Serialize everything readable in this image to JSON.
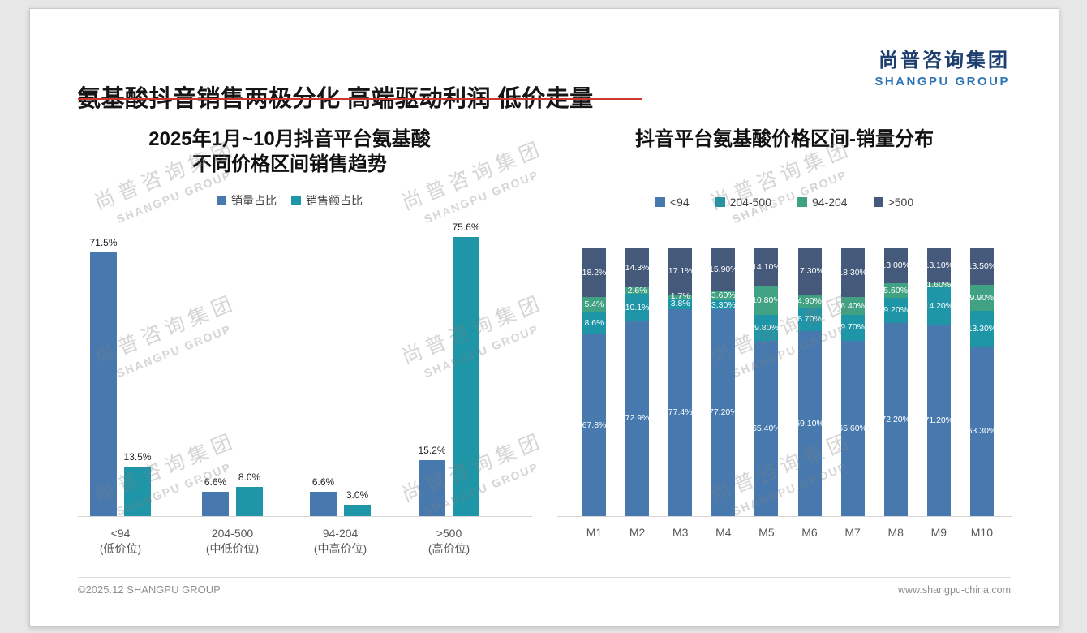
{
  "slide": {
    "title": "氨基酸抖音销售两极分化 高端驱动利润 低价走量",
    "accent_color": "#d0362c"
  },
  "logo": {
    "cn": "尚普咨询集团",
    "en": "SHANGPU GROUP"
  },
  "watermark": {
    "cn": "尚普咨询集团",
    "en": "SHANGPU GROUP"
  },
  "footer": {
    "left": "©2025.12 SHANGPU GROUP",
    "right": "www.shangpu-china.com"
  },
  "chart_data": [
    {
      "type": "bar",
      "stacked": false,
      "title": "2025年1月~10月抖音平台氨基酸不同价格区间销售趋势",
      "title_lines": [
        "2025年1月~10月抖音平台氨基酸",
        "不同价格区间销售趋势"
      ],
      "categories": [
        "<94",
        "204-500",
        "94-204",
        ">500"
      ],
      "category_sublabels": [
        "(低价位)",
        "(中低价位)",
        "(中高价位)",
        "(高价位)"
      ],
      "series": [
        {
          "name": "销量占比",
          "color": "#4779af",
          "values": [
            71.5,
            6.6,
            6.6,
            15.2
          ],
          "labels": [
            "71.5%",
            "6.6%",
            "6.6%",
            "15.2%"
          ]
        },
        {
          "name": "销售额占比",
          "color": "#1e96a8",
          "values": [
            13.5,
            8.0,
            3.0,
            75.6
          ],
          "labels": [
            "13.5%",
            "8.0%",
            "3.0%",
            "75.6%"
          ]
        }
      ],
      "ylim": [
        0,
        80
      ],
      "grid": false,
      "legend_position": "top-center"
    },
    {
      "type": "bar",
      "stacked": true,
      "title": "抖音平台氨基酸价格区间-销量分布",
      "categories": [
        "M1",
        "M2",
        "M3",
        "M4",
        "M5",
        "M6",
        "M7",
        "M8",
        "M9",
        "M10"
      ],
      "series": [
        {
          "name": "<94",
          "color": "#4779af",
          "values": [
            67.8,
            72.9,
            77.4,
            77.2,
            65.4,
            69.1,
            65.6,
            72.2,
            71.2,
            63.3
          ],
          "labels": [
            "67.8%",
            "72.9%",
            "77.4%",
            "77.20%",
            "65.40%",
            "69.10%",
            "65.60%",
            "72.20%",
            "71.20%",
            "63.30%"
          ]
        },
        {
          "name": "204-500",
          "color": "#1e96a8",
          "values": [
            8.6,
            10.1,
            3.8,
            3.3,
            9.8,
            8.7,
            9.7,
            9.2,
            14.2,
            13.3
          ],
          "labels": [
            "8.6%",
            "10.1%",
            "3.8%",
            "3.30%",
            "9.80%",
            "8.70%",
            "9.70%",
            "9.20%",
            "14.20%",
            "13.30%"
          ]
        },
        {
          "name": "94-204",
          "color": "#41a183",
          "values": [
            5.4,
            2.6,
            1.7,
            3.6,
            10.8,
            4.9,
            6.4,
            5.6,
            1.6,
            9.9
          ],
          "labels": [
            "5.4%",
            "2.6%",
            "1.7%",
            "3.60%",
            "10.80%",
            "4.90%",
            "6.40%",
            "5.60%",
            "1.60%",
            "9.90%"
          ]
        },
        {
          "name": ">500",
          "color": "#45597b",
          "values": [
            18.2,
            14.3,
            17.1,
            15.9,
            14.1,
            17.3,
            18.3,
            13.0,
            13.1,
            13.5
          ],
          "labels": [
            "18.2%",
            "14.3%",
            "17.1%",
            "15.90%",
            "14.10%",
            "17.30%",
            "18.30%",
            "13.00%",
            "13.10%",
            "13.50%"
          ]
        }
      ],
      "ylim": [
        0,
        100
      ],
      "grid": false,
      "legend_position": "top-center"
    }
  ]
}
